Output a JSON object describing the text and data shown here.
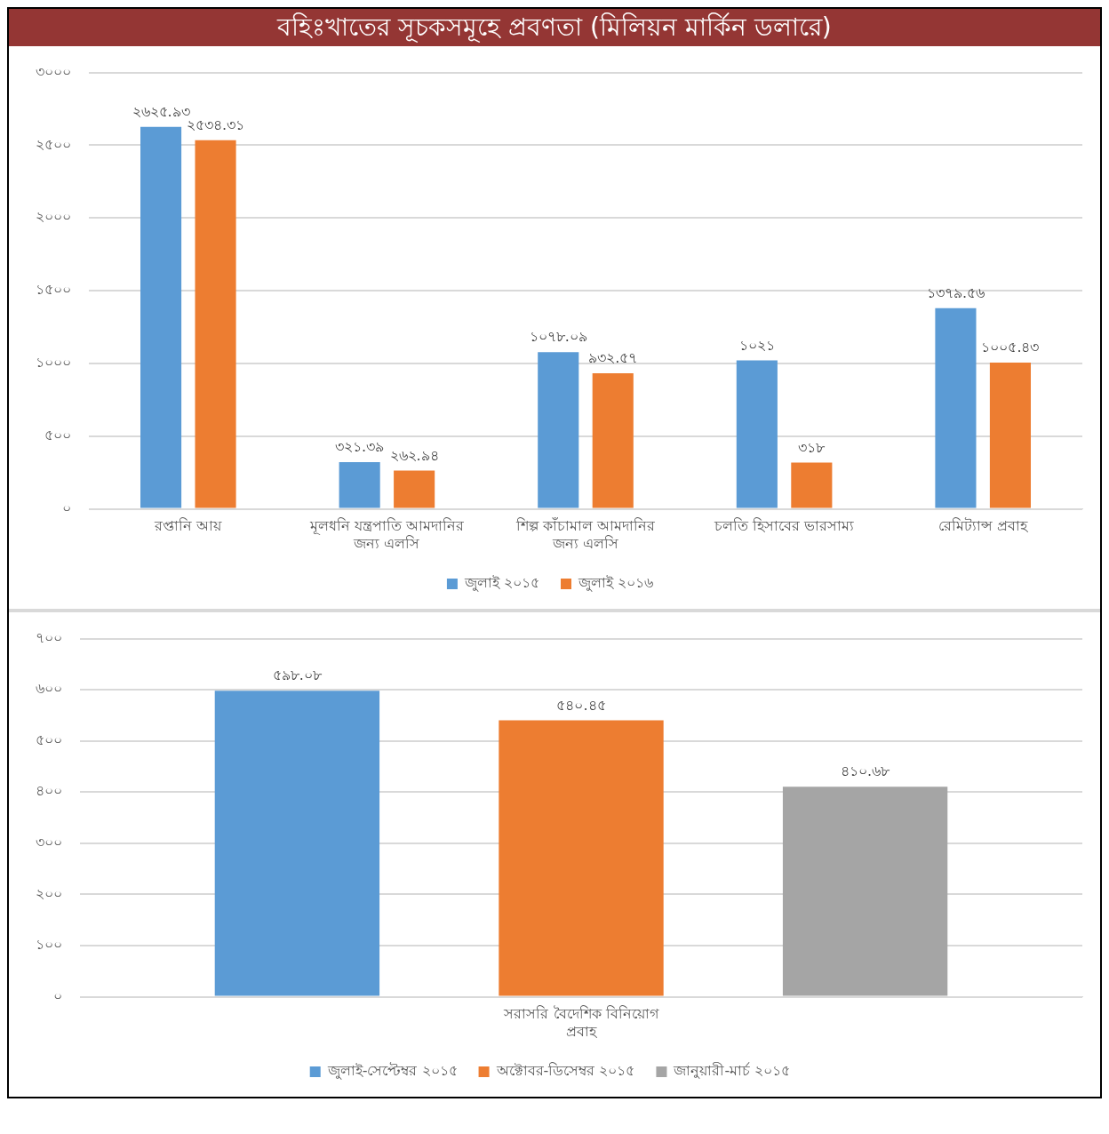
{
  "chart_data": [
    {
      "type": "bar",
      "title": "বহিঃখাতের সূচকসমূহে প্রবণতা (মিলিয়ন মার্কিন ডলারে)",
      "categories": [
        "রপ্তানি আয়",
        "মূলধনি যন্ত্রপাতি আমদানির জন্য এলসি",
        "শিল্প কাঁচামাল আমদানির জন্য এলসি",
        "চলতি হিসাবের ভারসাম্য",
        "রেমিট্যান্স প্রবাহ"
      ],
      "series": [
        {
          "name": "জুলাই ২০১৫",
          "color": "#5b9bd5",
          "values": [
            2625.93,
            321.39,
            1078.09,
            1021,
            1379.56
          ],
          "value_labels": [
            "২৬২৫.৯৩",
            "৩২১.৩৯",
            "১০৭৮.০৯",
            "১০২১",
            "১৩৭৯.৫৬"
          ]
        },
        {
          "name": "জুলাই ২০১৬",
          "color": "#ed7d31",
          "values": [
            2534.31,
            262.94,
            932.57,
            318,
            1005.43
          ],
          "value_labels": [
            "২৫৩৪.৩১",
            "২৬২.৯৪",
            "৯৩২.৫৭",
            "৩১৮",
            "১০০৫.৪৩"
          ]
        }
      ],
      "ylim": [
        0,
        3000
      ],
      "yticks": [
        {
          "value": 0,
          "label": "০"
        },
        {
          "value": 500,
          "label": "৫০০"
        },
        {
          "value": 1000,
          "label": "১০০০"
        },
        {
          "value": 1500,
          "label": "১৫০০"
        },
        {
          "value": 2000,
          "label": "২০০০"
        },
        {
          "value": 2500,
          "label": "২৫০০"
        },
        {
          "value": 3000,
          "label": "৩০০০"
        }
      ],
      "grid": "y",
      "legend": "bottom"
    },
    {
      "type": "bar",
      "categories": [
        "সরাসরি বৈদেশিক বিনিয়োগ প্রবাহ"
      ],
      "series": [
        {
          "name": "জুলাই-সেপ্টেম্বর ২০১৫",
          "color": "#5b9bd5",
          "values": [
            598.08
          ],
          "value_labels": [
            "৫৯৮.০৮"
          ]
        },
        {
          "name": "অক্টোবর-ডিসেম্বর ২০১৫",
          "color": "#ed7d31",
          "values": [
            540.45
          ],
          "value_labels": [
            "৫৪০.৪৫"
          ]
        },
        {
          "name": "জানুয়ারী-মার্চ ২০১৫",
          "color": "#a5a5a5",
          "values": [
            410.68
          ],
          "value_labels": [
            "৪১০.৬৮"
          ]
        }
      ],
      "ylim": [
        0,
        700
      ],
      "yticks": [
        {
          "value": 0,
          "label": "০"
        },
        {
          "value": 100,
          "label": "১০০"
        },
        {
          "value": 200,
          "label": "২০০"
        },
        {
          "value": 300,
          "label": "৩০০"
        },
        {
          "value": 400,
          "label": "৪০০"
        },
        {
          "value": 500,
          "label": "৫০০"
        },
        {
          "value": 600,
          "label": "৬০০"
        },
        {
          "value": 700,
          "label": "৭০০"
        }
      ],
      "grid": "y",
      "legend": "bottom"
    }
  ]
}
